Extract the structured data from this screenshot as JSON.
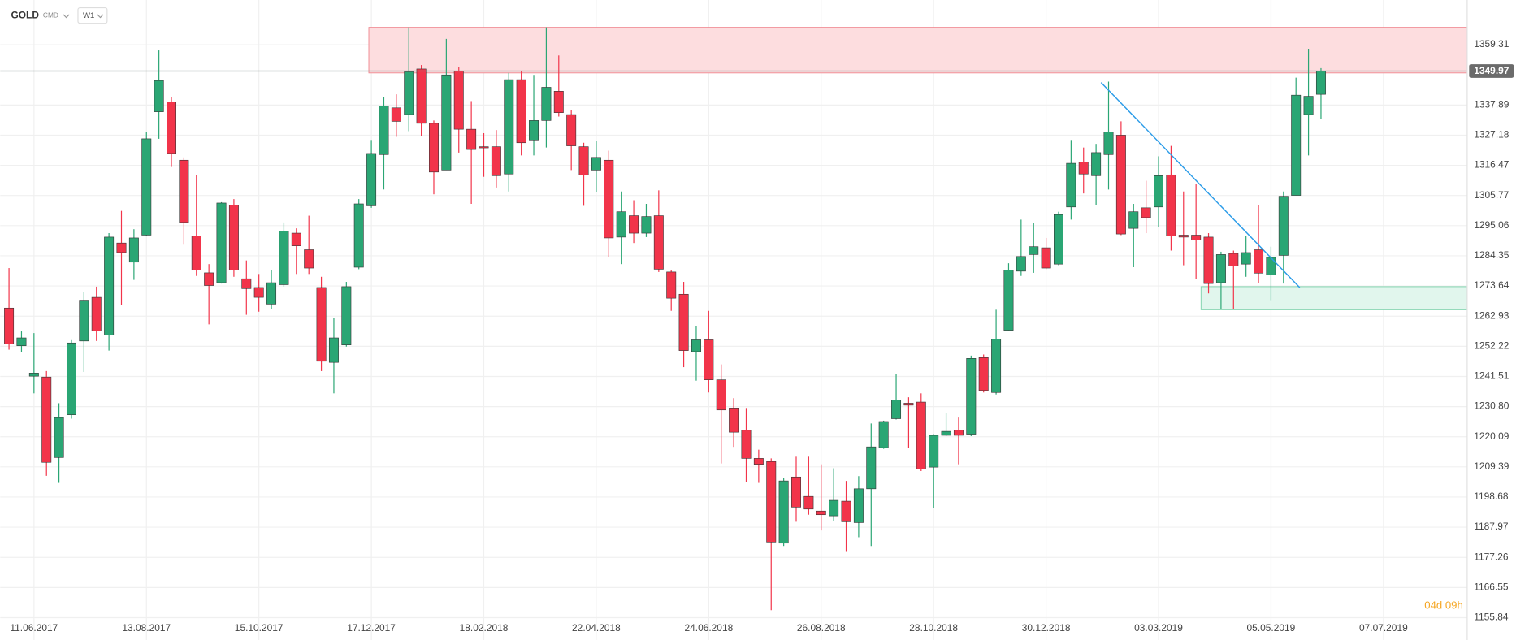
{
  "chart_data": {
    "type": "candlestick",
    "symbol": "GOLD",
    "market": "CMD",
    "timeframe": "W1",
    "timer": "04d 09h",
    "up_color": "#2aa674",
    "down_color": "#f2344a",
    "grid": true,
    "open": [
      1265.8,
      1252.4,
      1241.6,
      1241.3,
      1212.7,
      1227.9,
      1254.1,
      1269.6,
      1256.2,
      1288.9,
      1282.1,
      1291.7,
      1335.5,
      1339.0,
      1318.3,
      1291.4,
      1278.3,
      1274.8,
      1302.4,
      1276.2,
      1273.1,
      1267.2,
      1274.1,
      1292.4,
      1286.5,
      1273.1,
      1246.5,
      1252.7,
      1280.3,
      1302.1,
      1320.3,
      1336.9,
      1334.5,
      1350.7,
      1331.4,
      1314.8,
      1350.0,
      1329.3,
      1323.1,
      1323.1,
      1313.4,
      1346.9,
      1325.5,
      1332.4,
      1342.8,
      1334.5,
      1323.1,
      1314.8,
      1318.3,
      1291.0,
      1298.6,
      1292.4,
      1298.6,
      1278.6,
      1270.7,
      1250.3,
      1254.5,
      1240.3,
      1230.3,
      1222.4,
      1212.4,
      1211.3,
      1182.3,
      1205.8,
      1198.9,
      1193.7,
      1192.0,
      1197.2,
      1189.6,
      1201.6,
      1216.2,
      1226.5,
      1232.0,
      1232.4,
      1209.3,
      1220.6,
      1222.4,
      1221.0,
      1248.2,
      1235.8,
      1257.9,
      1278.9,
      1284.8,
      1287.2,
      1281.4,
      1301.7,
      1317.6,
      1312.8,
      1320.3,
      1327.2,
      1294.1,
      1301.4,
      1301.7,
      1313.1,
      1291.7,
      1291.7,
      1291.0,
      1274.8,
      1285.2,
      1281.4,
      1286.5,
      1277.6,
      1284.5,
      1305.8,
      1334.5,
      1341.7
    ],
    "high": [
      1280.0,
      1257.5,
      1256.9,
      1243.4,
      1232.0,
      1254.4,
      1271.4,
      1273.4,
      1292.4,
      1300.3,
      1293.8,
      1328.3,
      1357.3,
      1340.7,
      1319.3,
      1313.1,
      1281.4,
      1303.4,
      1304.5,
      1282.7,
      1277.9,
      1279.3,
      1296.2,
      1294.1,
      1298.6,
      1276.9,
      1262.4,
      1275.1,
      1304.5,
      1325.5,
      1340.7,
      1341.7,
      1365.5,
      1352.1,
      1332.4,
      1361.4,
      1351.4,
      1339.3,
      1327.9,
      1329.0,
      1349.3,
      1350.0,
      1348.6,
      1365.5,
      1355.5,
      1336.2,
      1324.5,
      1325.2,
      1321.7,
      1307.2,
      1304.1,
      1302.8,
      1307.6,
      1279.3,
      1275.1,
      1259.3,
      1264.8,
      1245.8,
      1233.8,
      1230.3,
      1215.5,
      1212.4,
      1205.5,
      1213.0,
      1213.0,
      1210.3,
      1208.9,
      1204.4,
      1206.1,
      1224.8,
      1225.8,
      1242.4,
      1234.1,
      1235.5,
      1221.0,
      1228.6,
      1226.9,
      1248.9,
      1249.3,
      1265.2,
      1281.7,
      1297.2,
      1295.9,
      1290.7,
      1300.0,
      1325.5,
      1322.8,
      1324.1,
      1346.2,
      1332.1,
      1302.8,
      1311.0,
      1319.7,
      1323.4,
      1307.2,
      1309.9,
      1292.4,
      1285.8,
      1286.2,
      1291.4,
      1302.4,
      1287.6,
      1307.2,
      1347.6,
      1357.9,
      1351.0
    ],
    "low": [
      1251.0,
      1250.3,
      1235.5,
      1206.2,
      1203.7,
      1226.5,
      1243.1,
      1254.1,
      1250.7,
      1266.9,
      1275.8,
      1291.4,
      1325.9,
      1315.9,
      1288.3,
      1277.2,
      1260.0,
      1274.5,
      1276.9,
      1263.4,
      1264.5,
      1265.5,
      1273.4,
      1277.9,
      1277.9,
      1243.4,
      1235.5,
      1252.1,
      1279.6,
      1301.4,
      1307.9,
      1326.6,
      1328.6,
      1326.9,
      1306.2,
      1314.8,
      1321.0,
      1302.8,
      1312.4,
      1308.6,
      1307.2,
      1320.0,
      1320.0,
      1322.8,
      1333.8,
      1314.8,
      1302.1,
      1306.9,
      1283.8,
      1281.4,
      1288.9,
      1291.0,
      1278.6,
      1264.8,
      1244.8,
      1240.0,
      1235.8,
      1210.6,
      1216.5,
      1204.1,
      1203.7,
      1158.5,
      1181.3,
      1189.9,
      1192.4,
      1186.8,
      1190.3,
      1179.2,
      1184.4,
      1181.3,
      1215.8,
      1226.2,
      1216.2,
      1207.9,
      1194.8,
      1220.3,
      1210.3,
      1220.3,
      1235.8,
      1235.1,
      1257.6,
      1277.2,
      1278.3,
      1279.6,
      1281.0,
      1297.2,
      1306.5,
      1302.4,
      1307.9,
      1291.7,
      1280.3,
      1292.4,
      1294.5,
      1286.2,
      1281.0,
      1276.2,
      1271.0,
      1265.5,
      1265.5,
      1276.9,
      1274.8,
      1268.6,
      1274.5,
      1305.8,
      1320.0,
      1332.8
    ],
    "close": [
      1253.1,
      1255.2,
      1242.7,
      1211.0,
      1226.9,
      1253.4,
      1268.6,
      1257.6,
      1291.0,
      1285.5,
      1290.7,
      1325.9,
      1346.6,
      1320.7,
      1296.2,
      1279.3,
      1273.8,
      1303.1,
      1279.3,
      1272.7,
      1269.6,
      1274.8,
      1293.1,
      1287.9,
      1280.0,
      1246.9,
      1255.2,
      1273.4,
      1302.8,
      1320.7,
      1337.6,
      1332.1,
      1349.7,
      1331.4,
      1314.1,
      1348.6,
      1329.3,
      1322.1,
      1322.8,
      1312.8,
      1346.9,
      1324.5,
      1332.4,
      1344.2,
      1335.2,
      1323.4,
      1313.1,
      1319.3,
      1290.7,
      1300.0,
      1292.4,
      1298.3,
      1279.6,
      1269.3,
      1250.7,
      1254.5,
      1240.3,
      1229.6,
      1221.7,
      1212.4,
      1210.3,
      1182.7,
      1204.4,
      1195.1,
      1194.4,
      1192.4,
      1197.5,
      1189.9,
      1201.6,
      1216.5,
      1225.5,
      1233.1,
      1231.3,
      1208.6,
      1220.6,
      1222.0,
      1220.6,
      1247.9,
      1236.5,
      1254.8,
      1279.3,
      1284.1,
      1287.6,
      1280.0,
      1299.0,
      1317.2,
      1313.4,
      1321.0,
      1328.3,
      1292.1,
      1300.0,
      1297.9,
      1312.8,
      1291.4,
      1291.0,
      1290.0,
      1274.5,
      1284.8,
      1280.7,
      1285.5,
      1278.2,
      1283.8,
      1305.5,
      1341.4,
      1341.0,
      1349.97
    ],
    "last_price": 1349.97,
    "xlim": [
      -0.7,
      116.7
    ],
    "xticks": [
      {
        "value": 2,
        "label": "11.06.2017"
      },
      {
        "value": 11,
        "label": "13.08.2017"
      },
      {
        "value": 20,
        "label": "15.10.2017"
      },
      {
        "value": 29,
        "label": "17.12.2017"
      },
      {
        "value": 38,
        "label": "18.02.2018"
      },
      {
        "value": 47,
        "label": "22.04.2018"
      },
      {
        "value": 56,
        "label": "24.06.2018"
      },
      {
        "value": 65,
        "label": "26.08.2018"
      },
      {
        "value": 74,
        "label": "28.10.2018"
      },
      {
        "value": 83,
        "label": "30.12.2018"
      },
      {
        "value": 92,
        "label": "03.03.2019"
      },
      {
        "value": 101,
        "label": "05.05.2019"
      },
      {
        "value": 110,
        "label": "07.07.2019"
      }
    ],
    "ylim": [
      1147.9,
      1375.2
    ],
    "yticks": [
      1359.31,
      1337.89,
      1327.18,
      1316.47,
      1305.77,
      1295.06,
      1284.35,
      1273.64,
      1262.93,
      1252.22,
      1241.51,
      {
        "value": 1230.8,
        "label": "1230.80"
      },
      1220.09,
      1209.39,
      1198.68,
      1187.97,
      1177.26,
      1166.55,
      1155.84
    ],
    "zones": [
      {
        "from": 28.8,
        "ylim": [
          1349.3,
          1365.5
        ],
        "color": "#fddddf",
        "border": "#f08a92"
      },
      {
        "from": 95.4,
        "ylim": [
          1265.2,
          1273.4
        ],
        "color": "#e1f6ed",
        "border": "#7fd3ad"
      }
    ],
    "trendline": {
      "x": [
        87.4,
        103.3
      ],
      "y": [
        1345.9,
        1273.1
      ],
      "color": "#2a9be8"
    }
  }
}
